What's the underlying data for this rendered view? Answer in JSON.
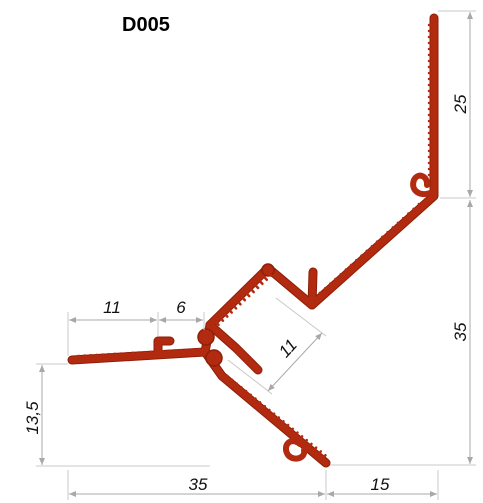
{
  "title": "D005",
  "colors": {
    "profile": "#b22a0f",
    "profile_edge": "#8e1f08",
    "dimension": "#a8a8a8"
  },
  "dimensions": {
    "top_right_height": "25",
    "right_height": "35",
    "left_flange": "11",
    "gap": "6",
    "inner_diagonal": "11",
    "left_height": "13,5",
    "bottom_left": "35",
    "bottom_right": "15"
  }
}
